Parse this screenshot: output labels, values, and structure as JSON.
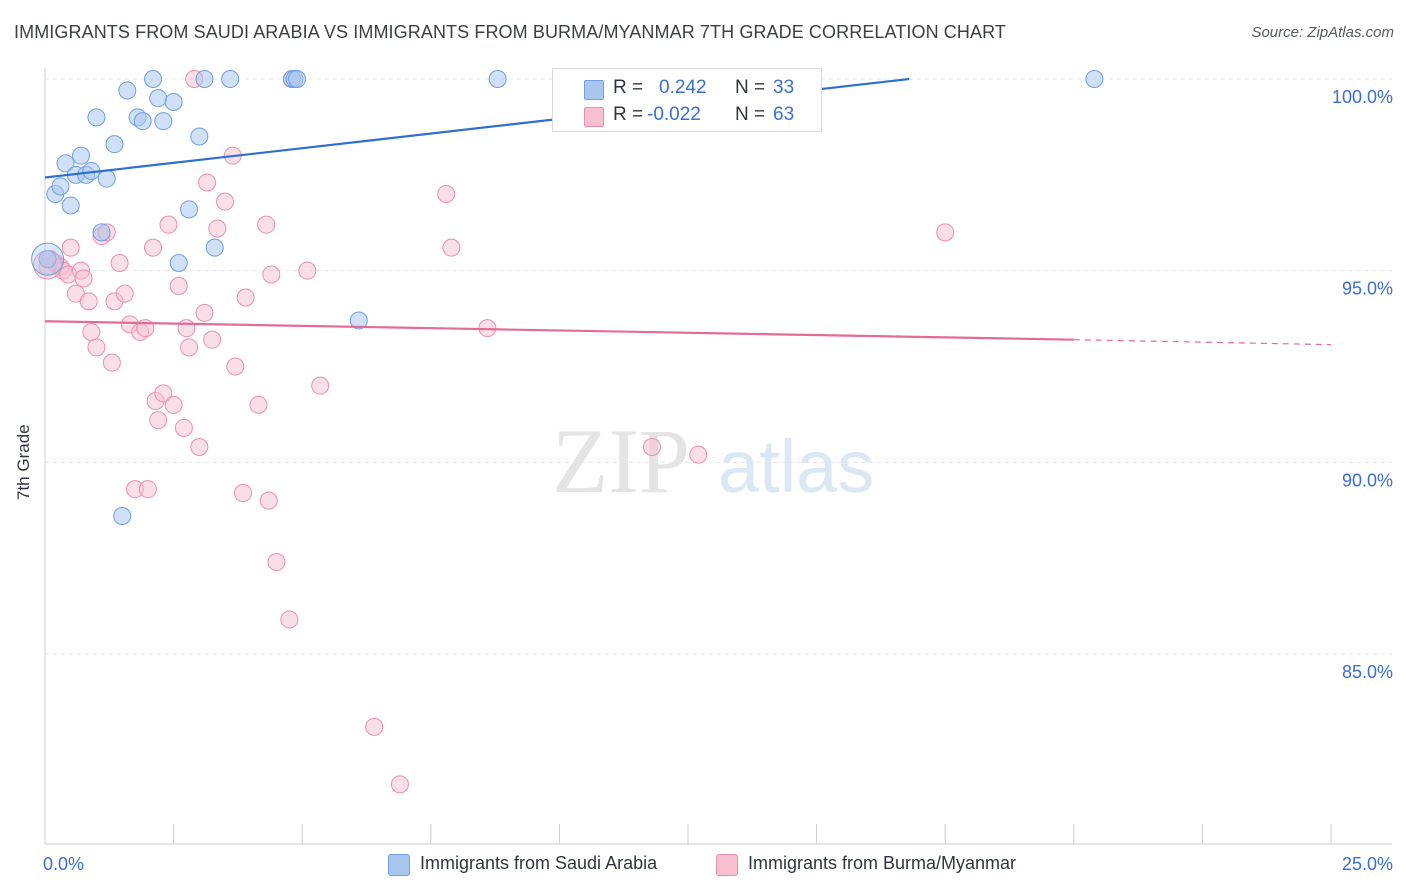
{
  "header": {
    "title": "IMMIGRANTS FROM SAUDI ARABIA VS IMMIGRANTS FROM BURMA/MYANMAR 7TH GRADE CORRELATION CHART",
    "source": "Source: ZipAtlas.com"
  },
  "watermark": {
    "zip": "ZIP",
    "atlas": "atlas"
  },
  "legend": {
    "rows": [
      {
        "r_label": "R =",
        "r_value": "0.242",
        "n_label": "N =",
        "n_value": "33",
        "color": "#a9c6ef"
      },
      {
        "r_label": "R =",
        "r_value": "-0.022",
        "n_label": "N =",
        "n_value": "63",
        "color": "#f5b8cc"
      }
    ]
  },
  "colors": {
    "series_a_fill": "#a9c6ef",
    "series_a_stroke": "#6f9fe0",
    "series_a_line": "#2f6fcf",
    "series_b_fill": "#f7bfd0",
    "series_b_stroke": "#ec8fae",
    "series_b_line": "#e46a98",
    "grid": "#e3e5ea",
    "axis_text": "#3a6fd0"
  },
  "chart_data": {
    "type": "scatter",
    "title": "IMMIGRANTS FROM SAUDI ARABIA VS IMMIGRANTS FROM BURMA/MYANMAR 7TH GRADE CORRELATION CHART",
    "xlabel": "",
    "ylabel": "7th Grade",
    "xlim": [
      0,
      25
    ],
    "ylim": [
      80.5,
      100.9
    ],
    "x_tick_labels": [
      "0.0%",
      "25.0%"
    ],
    "y_ticks": [
      85,
      90,
      95,
      100
    ],
    "y_tick_labels": [
      "85.0%",
      "90.0%",
      "95.0%",
      "100.0%"
    ],
    "grid": true,
    "legend_position": "top-center",
    "series": [
      {
        "name": "Immigrants from Saudi Arabia",
        "R": 0.242,
        "N": 33,
        "trend": {
          "x": [
            0,
            16.8
          ],
          "y": [
            97.43,
            100.0
          ],
          "dash_after": null
        },
        "points": [
          [
            0.05,
            95.3
          ],
          [
            0.2,
            97.0
          ],
          [
            0.3,
            97.2
          ],
          [
            0.4,
            97.8
          ],
          [
            0.5,
            96.7
          ],
          [
            0.6,
            97.5
          ],
          [
            0.7,
            98.0
          ],
          [
            0.8,
            97.5
          ],
          [
            0.9,
            97.6
          ],
          [
            1.0,
            99.0
          ],
          [
            1.1,
            96.0
          ],
          [
            1.2,
            97.4
          ],
          [
            1.35,
            98.3
          ],
          [
            1.6,
            99.7
          ],
          [
            1.8,
            99.0
          ],
          [
            1.9,
            98.9
          ],
          [
            2.1,
            100.0
          ],
          [
            2.2,
            99.5
          ],
          [
            2.3,
            98.9
          ],
          [
            2.5,
            99.4
          ],
          [
            2.6,
            95.2
          ],
          [
            2.8,
            96.6
          ],
          [
            3.0,
            98.5
          ],
          [
            3.1,
            100.0
          ],
          [
            3.3,
            95.6
          ],
          [
            3.6,
            100.0
          ],
          [
            4.8,
            100.0
          ],
          [
            4.85,
            100.0
          ],
          [
            4.9,
            100.0
          ],
          [
            6.1,
            93.7
          ],
          [
            8.8,
            100.0
          ],
          [
            20.4,
            100.0
          ],
          [
            1.5,
            88.6
          ]
        ]
      },
      {
        "name": "Immigrants from Burma/Myanmar",
        "R": -0.022,
        "N": 63,
        "trend": {
          "x": [
            0,
            20.0
          ],
          "y": [
            93.68,
            93.2
          ],
          "dash_to": [
            25,
            93.07
          ]
        },
        "points": [
          [
            0.05,
            95.1
          ],
          [
            0.1,
            95.3
          ],
          [
            0.2,
            95.2
          ],
          [
            0.3,
            95.1
          ],
          [
            0.35,
            95.0
          ],
          [
            0.45,
            94.9
          ],
          [
            0.5,
            95.6
          ],
          [
            0.6,
            94.4
          ],
          [
            0.7,
            95.0
          ],
          [
            0.75,
            94.8
          ],
          [
            0.85,
            94.2
          ],
          [
            0.9,
            93.4
          ],
          [
            1.0,
            93.0
          ],
          [
            1.1,
            95.9
          ],
          [
            1.2,
            96.0
          ],
          [
            1.3,
            92.6
          ],
          [
            1.35,
            94.2
          ],
          [
            1.45,
            95.2
          ],
          [
            1.55,
            94.4
          ],
          [
            1.65,
            93.6
          ],
          [
            1.75,
            89.3
          ],
          [
            1.85,
            93.4
          ],
          [
            1.95,
            93.5
          ],
          [
            2.0,
            89.3
          ],
          [
            2.1,
            95.6
          ],
          [
            2.15,
            91.6
          ],
          [
            2.2,
            91.1
          ],
          [
            2.3,
            91.8
          ],
          [
            2.4,
            96.2
          ],
          [
            2.5,
            91.5
          ],
          [
            2.6,
            94.6
          ],
          [
            2.7,
            90.9
          ],
          [
            2.75,
            93.5
          ],
          [
            2.8,
            93.0
          ],
          [
            2.9,
            100.0
          ],
          [
            3.0,
            90.4
          ],
          [
            3.1,
            93.9
          ],
          [
            3.15,
            97.3
          ],
          [
            3.25,
            93.2
          ],
          [
            3.35,
            96.1
          ],
          [
            3.5,
            96.8
          ],
          [
            3.65,
            98.0
          ],
          [
            3.7,
            92.5
          ],
          [
            3.85,
            89.2
          ],
          [
            3.9,
            94.3
          ],
          [
            4.15,
            91.5
          ],
          [
            4.3,
            96.2
          ],
          [
            4.35,
            89.0
          ],
          [
            4.4,
            94.9
          ],
          [
            4.5,
            87.4
          ],
          [
            4.75,
            85.9
          ],
          [
            4.8,
            100.0
          ],
          [
            5.1,
            95.0
          ],
          [
            5.35,
            92.0
          ],
          [
            6.4,
            83.1
          ],
          [
            6.9,
            81.6
          ],
          [
            7.8,
            97.0
          ],
          [
            7.9,
            95.6
          ],
          [
            8.6,
            93.5
          ],
          [
            11.2,
            100.0
          ],
          [
            11.8,
            90.4
          ],
          [
            12.7,
            90.2
          ],
          [
            17.5,
            96.0
          ]
        ]
      }
    ]
  },
  "bottom_legend": {
    "items": [
      {
        "label": "Immigrants from Saudi Arabia"
      },
      {
        "label": "Immigrants from Burma/Myanmar"
      }
    ]
  }
}
